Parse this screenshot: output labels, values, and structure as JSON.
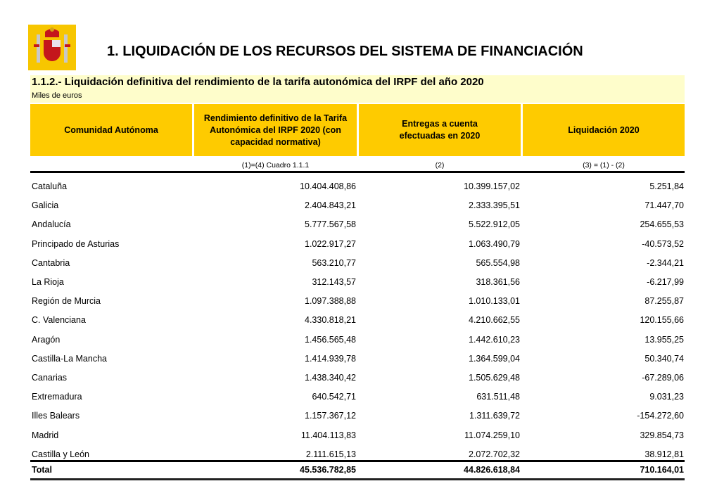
{
  "header": {
    "logo": "Escudo de España",
    "title": "1. LIQUIDACIÓN DE LOS RECURSOS DEL SISTEMA DE FINANCIACIÓN"
  },
  "section": {
    "subtitle": "1.1.2.- Liquidación definitiva del rendimiento de la tarifa autonómica del IRPF del año 2020",
    "units": "Miles de euros"
  },
  "colors": {
    "header_bg": "#fecb00",
    "band_bg": "#fefdcb"
  },
  "table": {
    "columns": [
      "Comunidad Autónoma",
      "Rendimiento definitivo de la Tarifa Autonómica del IRPF 2020 (con capacidad normativa)",
      "Entregas a cuenta efectuadas en 2020",
      "Liquidación 2020"
    ],
    "notes": [
      "(1)=(4) Cuadro 1.1.1",
      "(2)",
      "(3) = (1) - (2)"
    ],
    "rows": [
      [
        "Cataluña",
        "10.404.408,86",
        "10.399.157,02",
        "5.251,84"
      ],
      [
        "Galicia",
        "2.404.843,21",
        "2.333.395,51",
        "71.447,70"
      ],
      [
        "Andalucía",
        "5.777.567,58",
        "5.522.912,05",
        "254.655,53"
      ],
      [
        "Principado de Asturias",
        "1.022.917,27",
        "1.063.490,79",
        "-40.573,52"
      ],
      [
        "Cantabria",
        "563.210,77",
        "565.554,98",
        "-2.344,21"
      ],
      [
        "La Rioja",
        "312.143,57",
        "318.361,56",
        "-6.217,99"
      ],
      [
        "Región de Murcia",
        "1.097.388,88",
        "1.010.133,01",
        "87.255,87"
      ],
      [
        "C. Valenciana",
        "4.330.818,21",
        "4.210.662,55",
        "120.155,66"
      ],
      [
        "Aragón",
        "1.456.565,48",
        "1.442.610,23",
        "13.955,25"
      ],
      [
        "Castilla-La Mancha",
        "1.414.939,78",
        "1.364.599,04",
        "50.340,74"
      ],
      [
        "Canarias",
        "1.438.340,42",
        "1.505.629,48",
        "-67.289,06"
      ],
      [
        "Extremadura",
        "640.542,71",
        "631.511,48",
        "9.031,23"
      ],
      [
        "Illes Balears",
        "1.157.367,12",
        "1.311.639,72",
        "-154.272,60"
      ],
      [
        "Madrid",
        "11.404.113,83",
        "11.074.259,10",
        "329.854,73"
      ],
      [
        "Castilla y León",
        "2.111.615,13",
        "2.072.702,32",
        "38.912,81"
      ]
    ],
    "total": [
      "Total",
      "45.536.782,85",
      "44.826.618,84",
      "710.164,01"
    ]
  }
}
